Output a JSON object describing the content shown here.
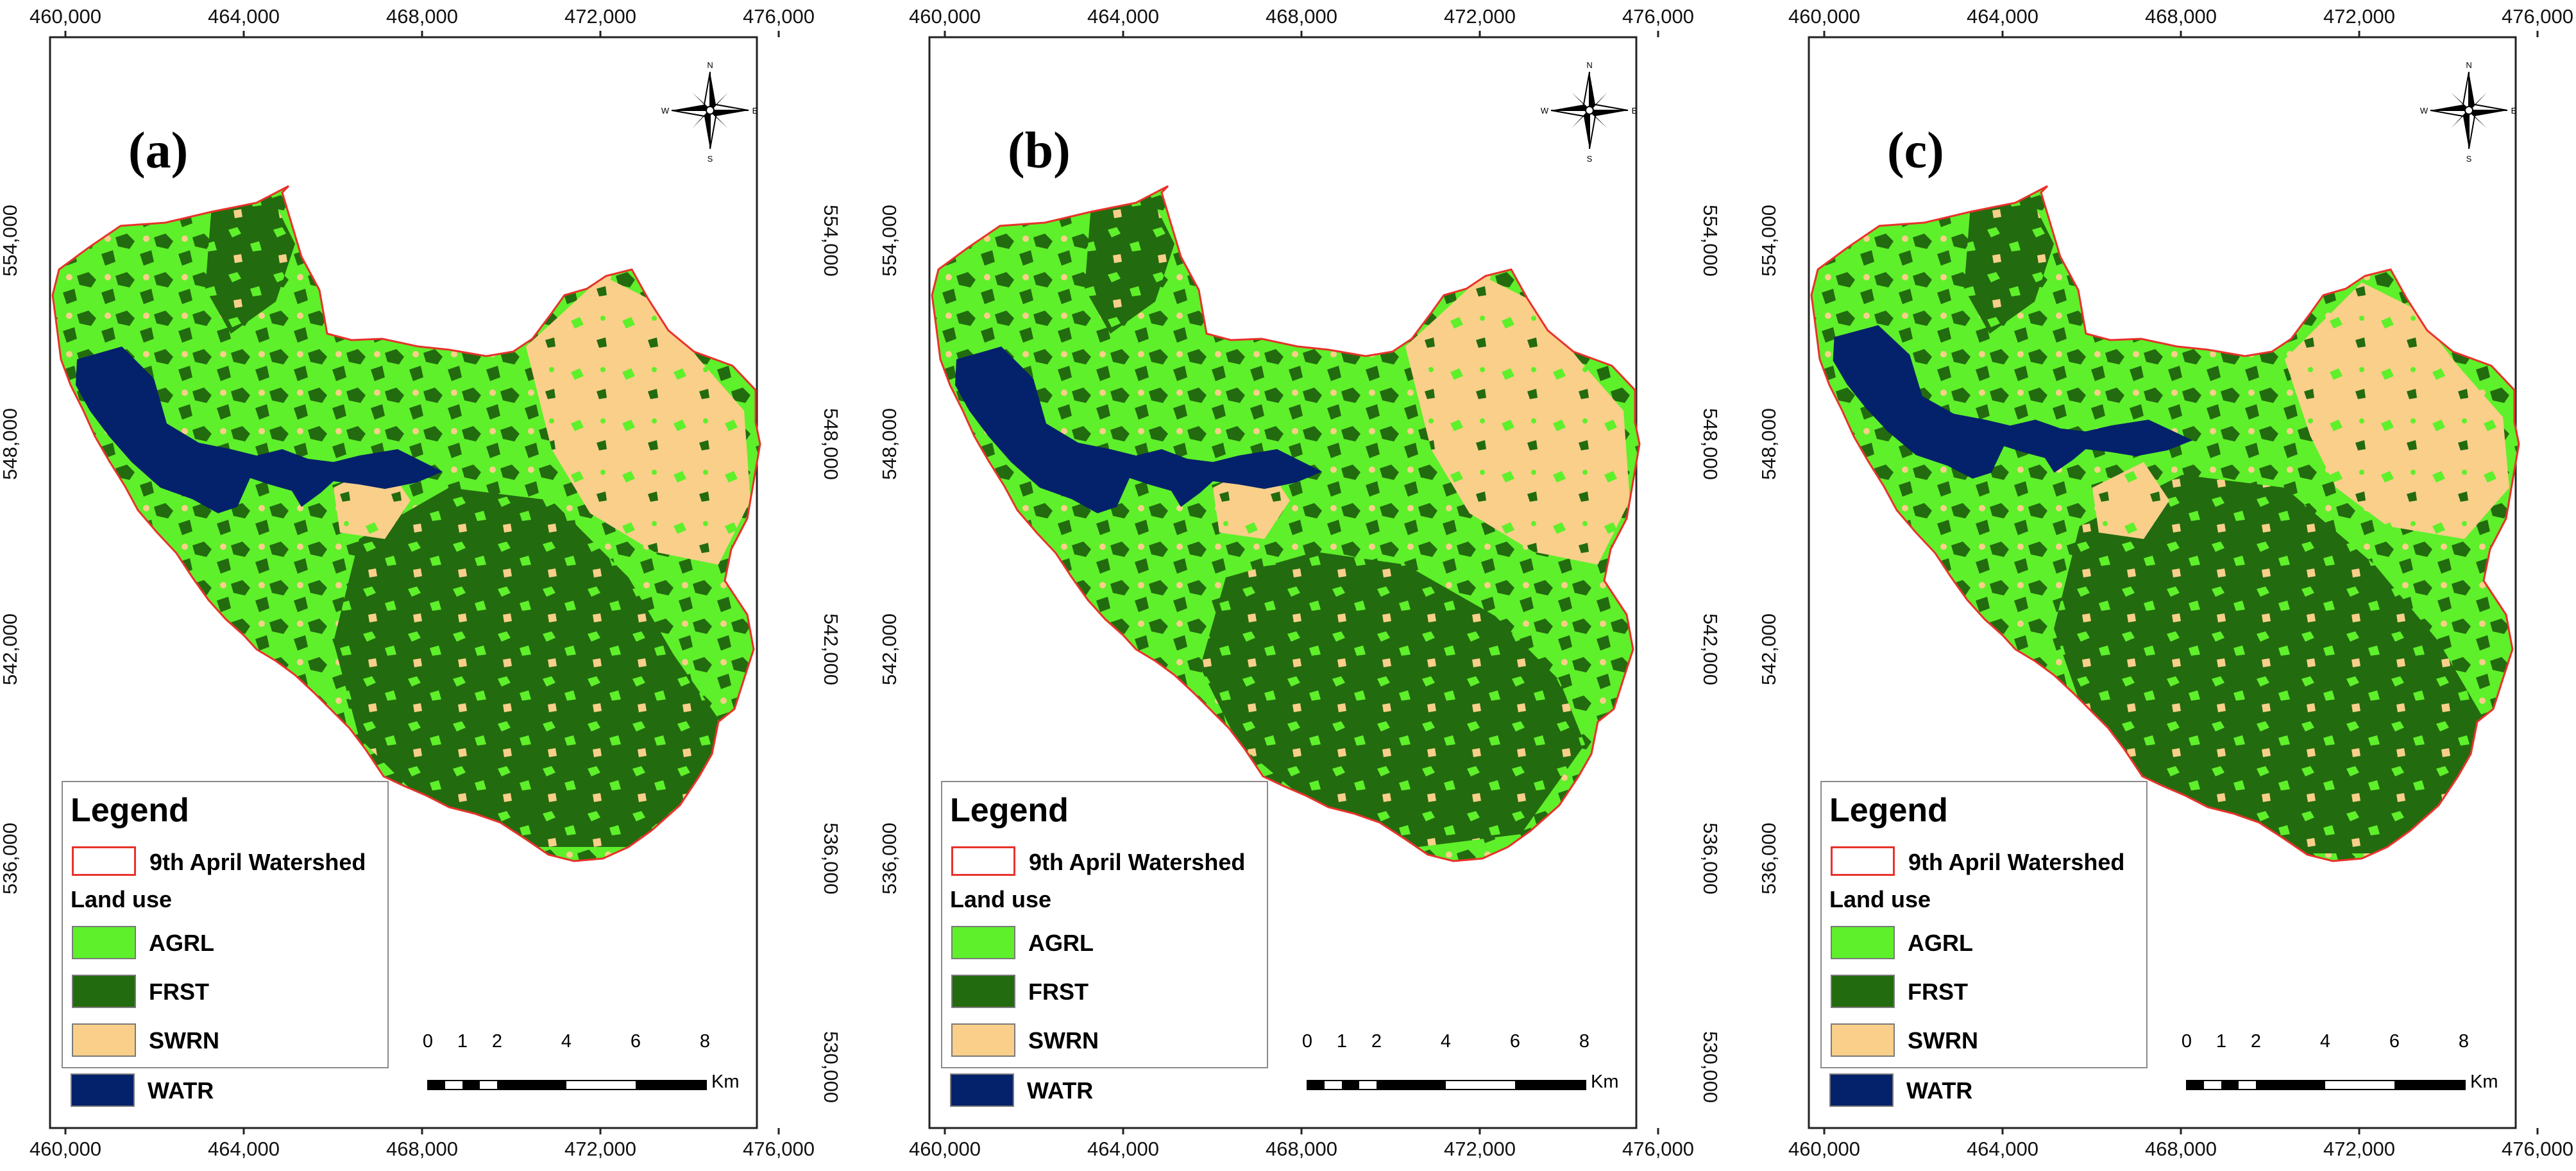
{
  "figure": {
    "panels": [
      {
        "letter": "(a)"
      },
      {
        "letter": "(b)"
      },
      {
        "letter": "(c)"
      }
    ],
    "x_ticks": [
      "460,000",
      "464,000",
      "468,000",
      "472,000",
      "476,000"
    ],
    "y_ticks": [
      "554,000",
      "548,000",
      "542,000",
      "536,000",
      "530,000"
    ],
    "north_arrow": {
      "n": "N",
      "s": "S",
      "e": "E",
      "w": "W"
    },
    "legend": {
      "title": "Legend",
      "watershed_label": "9th April Watershed",
      "subtitle": "Land use",
      "items": [
        {
          "code": "AGRL",
          "color": "#5ef02a"
        },
        {
          "code": "FRST",
          "color": "#236b0f"
        },
        {
          "code": "SWRN",
          "color": "#f9cf8a"
        },
        {
          "code": "WATR",
          "color": "#04216b"
        }
      ],
      "watershed_color": "#e8322b"
    },
    "scale_bar": {
      "labels": [
        "0",
        "1",
        "2",
        "4",
        "6",
        "8"
      ],
      "unit": "Km"
    }
  }
}
